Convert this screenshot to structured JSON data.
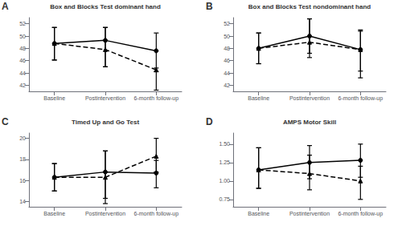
{
  "chart_data": [
    {
      "type": "line",
      "title": "Box and Blocks Test dominant hand",
      "annotations": [
        "A"
      ],
      "categories": [
        "Baseline",
        "Postintervention",
        "6-month follow-up"
      ],
      "ylim": [
        41,
        53
      ],
      "yticks": [
        42,
        44,
        46,
        48,
        50,
        52
      ],
      "grid": false,
      "series": [
        {
          "color": "black",
          "line_style": "solid",
          "marker": "circle",
          "values": [
            48.8,
            49.3,
            47.6
          ],
          "ci_lo": [
            46.1,
            45.0,
            44.2
          ],
          "ci_hi": [
            51.4,
            51.4,
            50.5
          ]
        },
        {
          "color": "black",
          "line_style": "dashed",
          "marker": "triangle",
          "values": [
            48.8,
            47.8,
            44.5
          ],
          "ci_lo": [
            46.1,
            45.0,
            41.2
          ],
          "ci_hi": [
            51.4,
            51.4,
            44.8
          ]
        }
      ]
    },
    {
      "type": "line",
      "title": "Box and Blocks Test nondominant hand",
      "annotations": [
        "B"
      ],
      "categories": [
        "Baseline",
        "Postintervention",
        "6-month follow-up"
      ],
      "ylim": [
        41,
        53
      ],
      "yticks": [
        42,
        44,
        46,
        48,
        50,
        52
      ],
      "grid": false,
      "series": [
        {
          "color": "black",
          "line_style": "solid",
          "marker": "circle",
          "values": [
            48.0,
            50.0,
            47.8
          ],
          "ci_lo": [
            45.5,
            47.2,
            44.3
          ],
          "ci_hi": [
            50.5,
            52.8,
            51.0
          ]
        },
        {
          "color": "black",
          "line_style": "dashed",
          "marker": "triangle",
          "values": [
            48.0,
            49.0,
            47.8
          ],
          "ci_lo": [
            45.5,
            46.5,
            43.2
          ],
          "ci_hi": [
            50.5,
            52.8,
            50.8
          ]
        }
      ]
    },
    {
      "type": "line",
      "title": "Timed Up and Go Test",
      "annotations": [
        "C"
      ],
      "categories": [
        "Baseline",
        "Postintervention",
        "6-month follow-up"
      ],
      "ylim": [
        13.5,
        20.5
      ],
      "yticks": [
        14,
        16,
        18,
        20
      ],
      "grid": false,
      "series": [
        {
          "color": "black",
          "line_style": "solid",
          "marker": "circle",
          "values": [
            16.3,
            16.8,
            16.7
          ],
          "ci_lo": [
            15.0,
            14.3,
            15.3
          ],
          "ci_hi": [
            17.6,
            18.8,
            17.9
          ]
        },
        {
          "color": "black",
          "line_style": "dashed",
          "marker": "triangle",
          "values": [
            16.3,
            16.3,
            18.3
          ],
          "ci_lo": [
            15.0,
            13.8,
            16.8
          ],
          "ci_hi": [
            17.6,
            18.8,
            20.0
          ]
        }
      ]
    },
    {
      "type": "line",
      "title": "AMPS Motor Skill",
      "annotations": [
        "D"
      ],
      "categories": [
        "Baseline",
        "Postintervention",
        "6-month follow-up"
      ],
      "ylim": [
        0.65,
        1.65
      ],
      "yticks": [
        0.75,
        {
          "value": 1.0,
          "label": "1.00"
        },
        1.25,
        {
          "value": 1.5,
          "label": "1.50"
        }
      ],
      "grid": false,
      "series": [
        {
          "color": "black",
          "line_style": "solid",
          "marker": "circle",
          "values": [
            1.15,
            1.25,
            1.28
          ],
          "ci_lo": [
            0.9,
            1.03,
            1.05
          ],
          "ci_hi": [
            1.45,
            1.48,
            1.5
          ]
        },
        {
          "color": "black",
          "line_style": "dashed",
          "marker": "triangle",
          "values": [
            1.15,
            1.1,
            1.0
          ],
          "ci_lo": [
            0.9,
            0.88,
            0.75
          ],
          "ci_hi": [
            1.45,
            1.35,
            1.2
          ]
        }
      ]
    }
  ]
}
